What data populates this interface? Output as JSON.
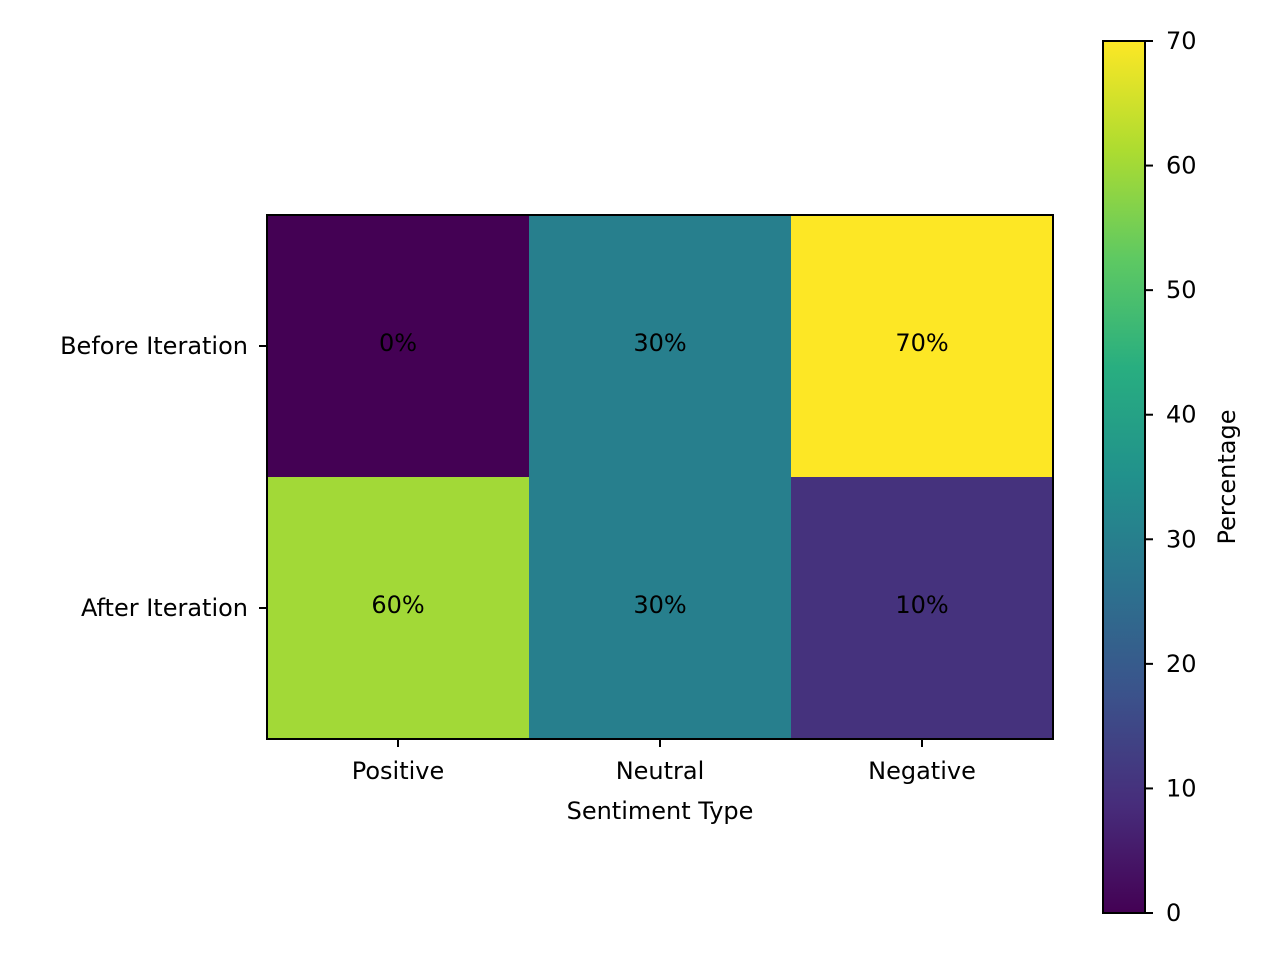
{
  "chart_data": {
    "type": "heatmap",
    "title": "",
    "xlabel": "Sentiment Type",
    "ylabel": "",
    "x_categories": [
      "Positive",
      "Neutral",
      "Negative"
    ],
    "y_categories": [
      "Before Iteration",
      "After Iteration"
    ],
    "values": [
      [
        0,
        30,
        70
      ],
      [
        60,
        30,
        10
      ]
    ],
    "cell_labels": [
      [
        "0%",
        "30%",
        "70%"
      ],
      [
        "60%",
        "30%",
        "10%"
      ]
    ],
    "colormap": "viridis",
    "colorbar": {
      "label": "Percentage",
      "range": [
        0,
        70
      ],
      "ticks": [
        0,
        10,
        20,
        30,
        40,
        50,
        60,
        70
      ],
      "tick_labels": [
        "0",
        "10",
        "20",
        "30",
        "40",
        "50",
        "60",
        "70"
      ]
    },
    "grid": false,
    "legend": "colorbar-right"
  }
}
